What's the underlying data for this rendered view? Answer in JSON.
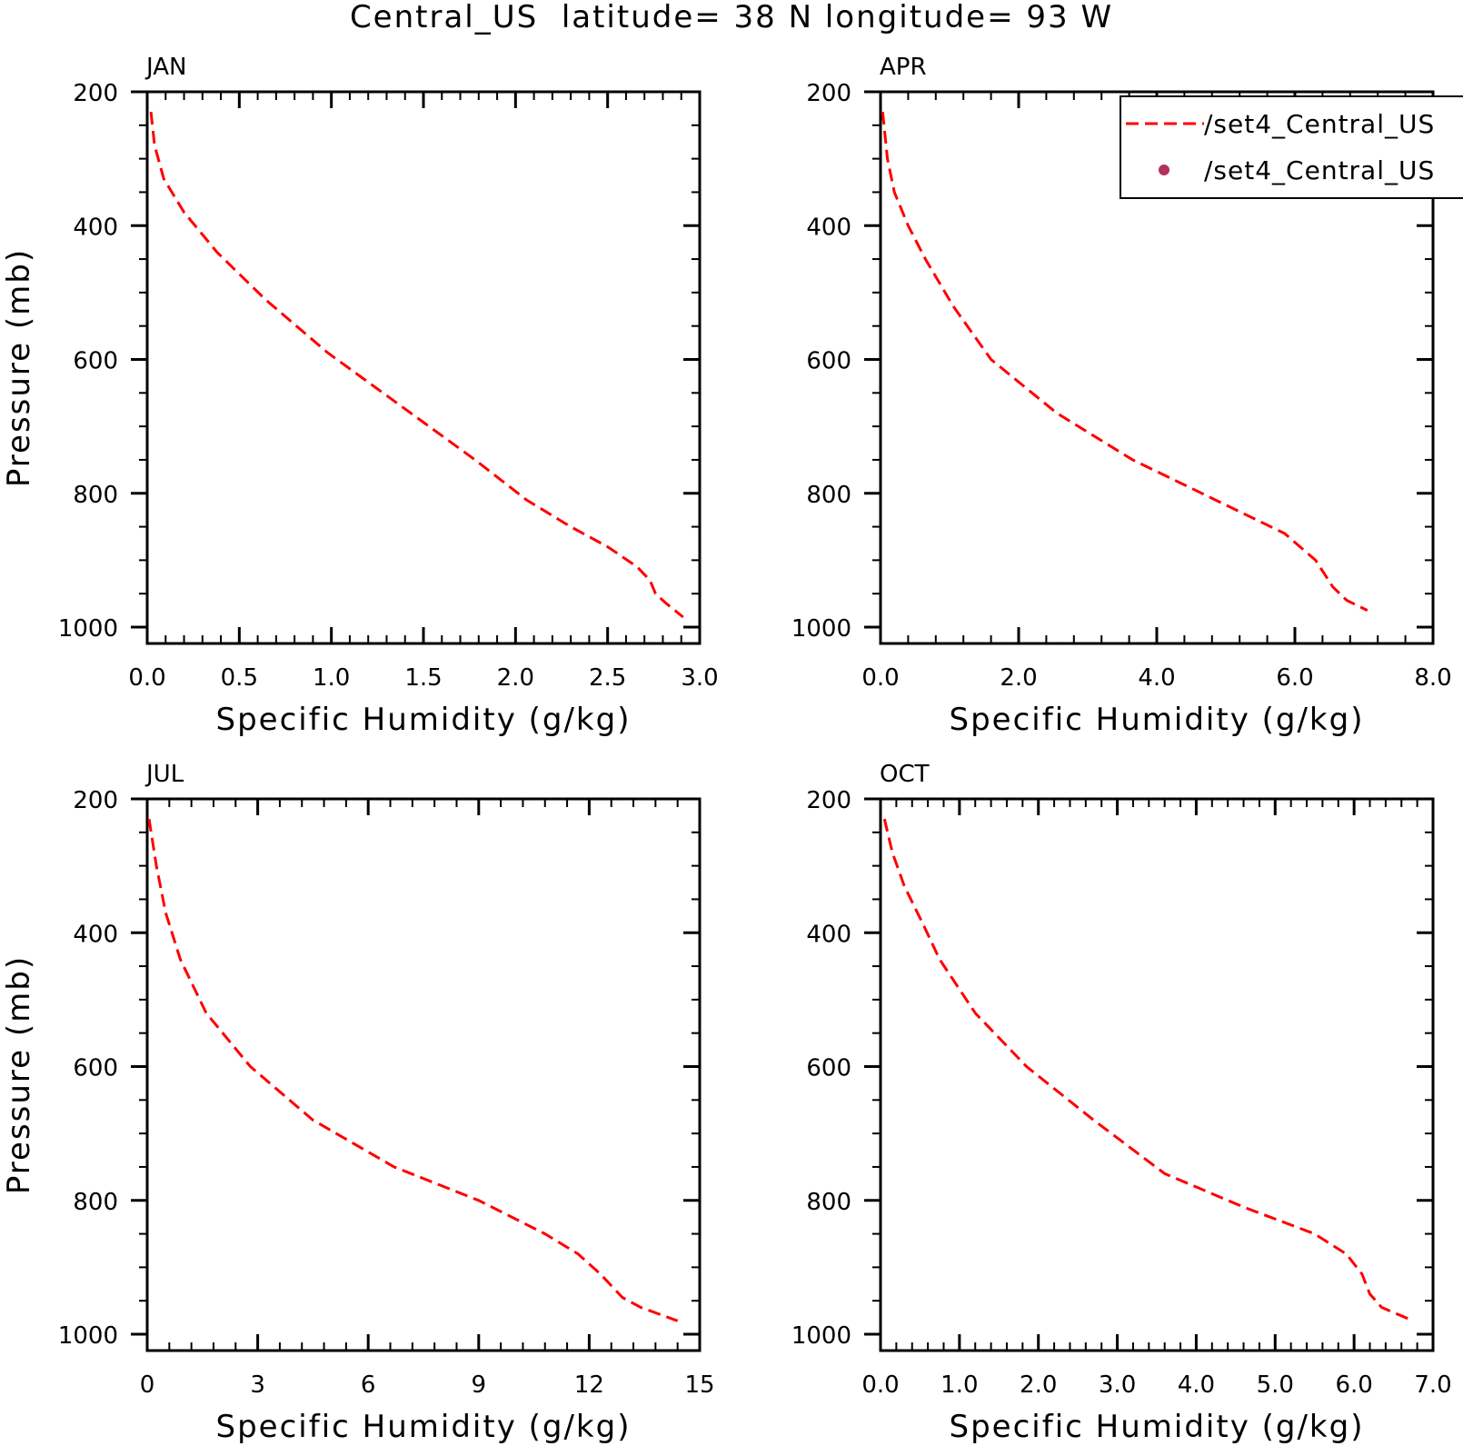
{
  "figure": {
    "title": "Central_US  latitude= 38 N longitude= 93 W"
  },
  "colors": {
    "line": "#ff0000",
    "dot": "#b03060",
    "axis": "#000000"
  },
  "legend": {
    "placement": "top-right of APR panel",
    "entries": [
      {
        "label": "/set4_Central_US",
        "style": "dashed-line",
        "color": "#ff0000"
      },
      {
        "label": "/set4_Central_US",
        "style": "dot",
        "color": "#b03060"
      }
    ]
  },
  "chart_data": [
    {
      "type": "line",
      "panel_label": "JAN",
      "xlabel": "Specific Humidity (g/kg)",
      "ylabel": "Pressure (mb)",
      "xlim": [
        0,
        3
      ],
      "ylim": [
        1000,
        200
      ],
      "y_inverted": true,
      "xticks": [
        0,
        0.5,
        1,
        1.5,
        2,
        2.5,
        3
      ],
      "xtick_labels": [
        "0.0",
        "0.5",
        "1.0",
        "1.5",
        "2.0",
        "2.5",
        "3.0"
      ],
      "x_minor_step": 0.1,
      "yticks": [
        200,
        400,
        600,
        800,
        1000
      ],
      "ytick_labels": [
        "200",
        "400",
        "600",
        "800",
        "1000"
      ],
      "y_minor_step": 50,
      "series": [
        {
          "style": "dashed",
          "color": "#ff0000",
          "x": [
            0.02,
            0.04,
            0.09,
            0.2,
            0.38,
            0.64,
            0.98,
            1.38,
            1.78,
            2.06,
            2.3,
            2.5,
            2.66,
            2.73,
            2.76,
            2.82,
            2.91
          ],
          "y": [
            230,
            280,
            330,
            380,
            440,
            510,
            590,
            670,
            750,
            810,
            850,
            880,
            910,
            930,
            950,
            965,
            985
          ]
        }
      ]
    },
    {
      "type": "line",
      "panel_label": "APR",
      "xlabel": "Specific Humidity (g/kg)",
      "ylabel": "",
      "xlim": [
        0,
        8
      ],
      "ylim": [
        1000,
        200
      ],
      "y_inverted": true,
      "xticks": [
        0,
        2,
        4,
        6,
        8
      ],
      "xtick_labels": [
        "0.0",
        "2.0",
        "4.0",
        "6.0",
        "8.0"
      ],
      "x_minor_step": 0.4,
      "yticks": [
        200,
        400,
        600,
        800,
        1000
      ],
      "ytick_labels": [
        "200",
        "400",
        "600",
        "800",
        "1000"
      ],
      "y_minor_step": 50,
      "series": [
        {
          "style": "dashed",
          "color": "#ff0000",
          "x": [
            0.03,
            0.1,
            0.2,
            0.4,
            0.65,
            1.05,
            1.6,
            2.55,
            3.65,
            4.85,
            5.85,
            6.3,
            6.55,
            6.75,
            7.05
          ],
          "y": [
            230,
            300,
            350,
            400,
            450,
            520,
            600,
            680,
            750,
            810,
            860,
            900,
            940,
            960,
            975
          ]
        }
      ]
    },
    {
      "type": "line",
      "panel_label": "JUL",
      "xlabel": "Specific Humidity (g/kg)",
      "ylabel": "Pressure (mb)",
      "xlim": [
        0,
        15
      ],
      "ylim": [
        1000,
        200
      ],
      "y_inverted": true,
      "xticks": [
        0,
        3,
        6,
        9,
        12,
        15
      ],
      "xtick_labels": [
        "0",
        "3",
        "6",
        "9",
        "12",
        "15"
      ],
      "x_minor_step": 0.6,
      "yticks": [
        200,
        400,
        600,
        800,
        1000
      ],
      "ytick_labels": [
        "200",
        "400",
        "600",
        "800",
        "1000"
      ],
      "y_minor_step": 50,
      "series": [
        {
          "style": "dashed",
          "color": "#ff0000",
          "x": [
            0.05,
            0.25,
            0.5,
            0.9,
            1.6,
            2.8,
            4.5,
            6.7,
            9.0,
            10.8,
            11.7,
            12.3,
            12.9,
            13.4,
            14.4
          ],
          "y": [
            230,
            300,
            370,
            440,
            520,
            600,
            680,
            750,
            800,
            850,
            880,
            910,
            945,
            960,
            980
          ]
        }
      ]
    },
    {
      "type": "line",
      "panel_label": "OCT",
      "xlabel": "Specific Humidity (g/kg)",
      "ylabel": "",
      "xlim": [
        0,
        7
      ],
      "ylim": [
        1000,
        200
      ],
      "y_inverted": true,
      "xticks": [
        0,
        1,
        2,
        3,
        4,
        5,
        6,
        7
      ],
      "xtick_labels": [
        "0.0",
        "1.0",
        "2.0",
        "3.0",
        "4.0",
        "5.0",
        "6.0",
        "7.0"
      ],
      "x_minor_step": 0.2,
      "yticks": [
        200,
        400,
        600,
        800,
        1000
      ],
      "ytick_labels": [
        "200",
        "400",
        "600",
        "800",
        "1000"
      ],
      "y_minor_step": 50,
      "series": [
        {
          "style": "dashed",
          "color": "#ff0000",
          "x": [
            0.05,
            0.15,
            0.3,
            0.55,
            0.75,
            1.2,
            1.85,
            2.7,
            3.6,
            4.6,
            5.5,
            5.9,
            6.1,
            6.2,
            6.35,
            6.75
          ],
          "y": [
            230,
            280,
            330,
            390,
            440,
            520,
            600,
            680,
            760,
            810,
            850,
            880,
            910,
            940,
            960,
            980
          ]
        }
      ]
    }
  ]
}
